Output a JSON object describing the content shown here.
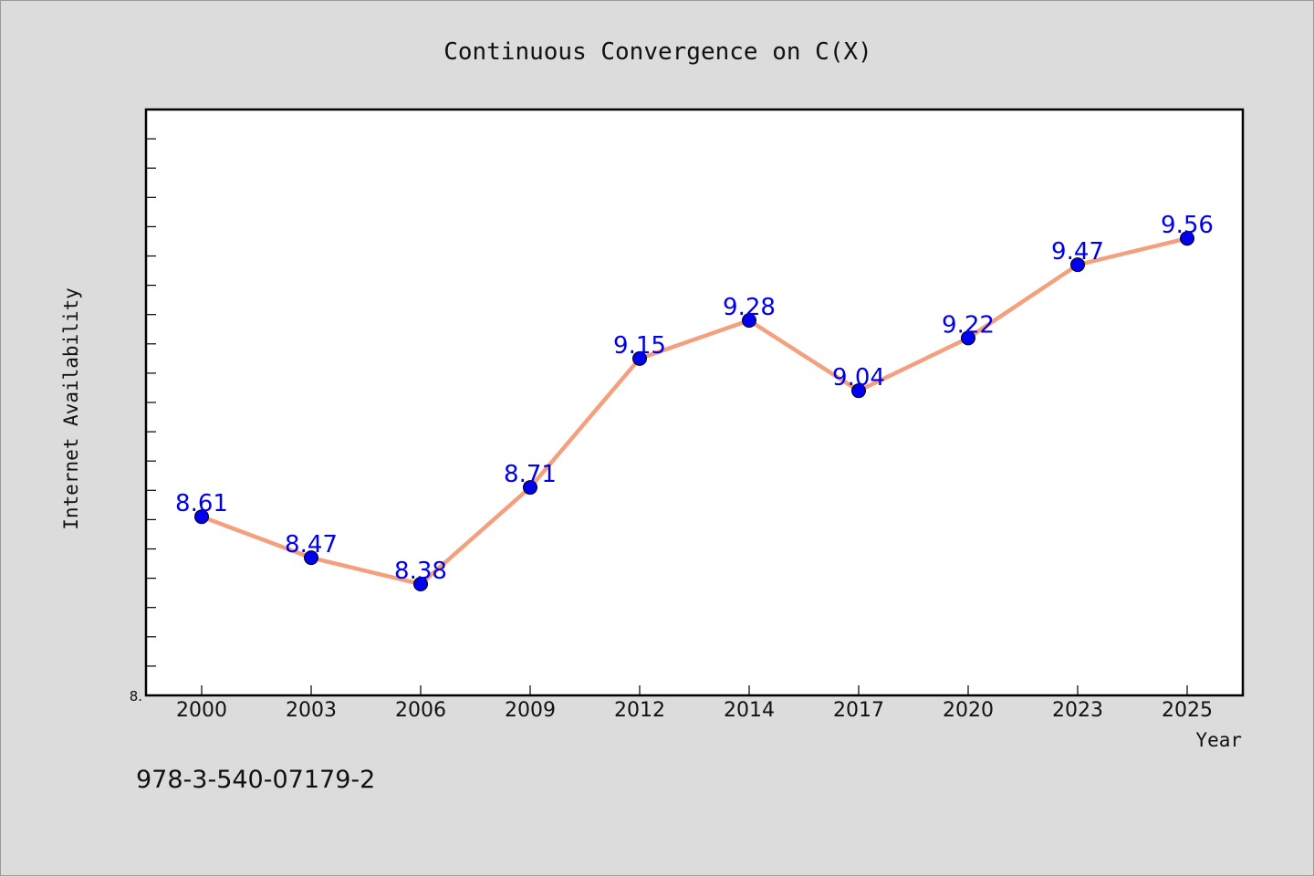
{
  "footer": {
    "code": "978-3-540-07179-2"
  },
  "colors": {
    "line": "#f4a07f",
    "marker": "#0000ee",
    "label": "#0000ee",
    "background": "#dcdcdc",
    "plot_bg": "#ffffff"
  },
  "chart_data": {
    "type": "line",
    "title": "Continuous Convergence on C(X)",
    "xlabel": "Year",
    "ylabel": "Internet Availability",
    "categories": [
      "2000",
      "2003",
      "2006",
      "2009",
      "2012",
      "2014",
      "2017",
      "2020",
      "2023",
      "2025"
    ],
    "series": [
      {
        "values": [
          8.61,
          8.47,
          8.38,
          8.71,
          9.15,
          9.28,
          9.04,
          9.22,
          9.47,
          9.56
        ]
      }
    ],
    "data_labels": [
      "8.61",
      "8.47",
      "8.38",
      "8.71",
      "9.15",
      "9.28",
      "9.04",
      "9.22",
      "9.47",
      "9.56"
    ],
    "yticks_labeled": [
      "8."
    ],
    "ylim": [
      8.0,
      10.0
    ],
    "grid": false,
    "legend": "none"
  }
}
